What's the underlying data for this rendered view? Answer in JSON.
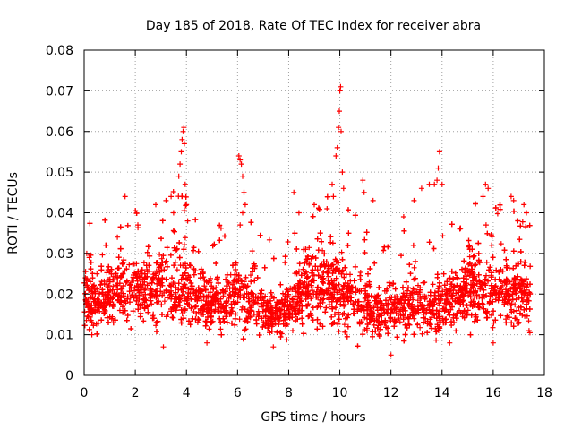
{
  "chart_data": {
    "type": "scatter",
    "title": "Day 185 of 2018, Rate Of TEC Index for receiver abra",
    "xlabel": "GPS time / hours",
    "ylabel": "ROTI / TECUs",
    "xlim": [
      0,
      18
    ],
    "ylim": [
      0,
      0.08
    ],
    "xticks": [
      "0",
      "2",
      "4",
      "6",
      "8",
      "10",
      "12",
      "14",
      "16",
      "18"
    ],
    "yticks": [
      "0",
      "0.01",
      "0.02",
      "0.03",
      "0.04",
      "0.05",
      "0.06",
      "0.07",
      "0.08"
    ],
    "grid": true,
    "marker": "+",
    "color": "#ff0000",
    "approximate_point_count": 5000,
    "background_band": [
      {
        "x": 0.0,
        "low": 0.012,
        "high": 0.027
      },
      {
        "x": 0.5,
        "low": 0.01,
        "high": 0.026
      },
      {
        "x": 1.0,
        "low": 0.012,
        "high": 0.028
      },
      {
        "x": 1.5,
        "low": 0.013,
        "high": 0.03
      },
      {
        "x": 2.0,
        "low": 0.013,
        "high": 0.029
      },
      {
        "x": 2.5,
        "low": 0.012,
        "high": 0.03
      },
      {
        "x": 3.0,
        "low": 0.011,
        "high": 0.033
      },
      {
        "x": 3.5,
        "low": 0.011,
        "high": 0.034
      },
      {
        "x": 4.0,
        "low": 0.012,
        "high": 0.032
      },
      {
        "x": 4.5,
        "low": 0.012,
        "high": 0.026
      },
      {
        "x": 5.0,
        "low": 0.011,
        "high": 0.025
      },
      {
        "x": 5.5,
        "low": 0.011,
        "high": 0.025
      },
      {
        "x": 6.0,
        "low": 0.012,
        "high": 0.028
      },
      {
        "x": 6.5,
        "low": 0.011,
        "high": 0.026
      },
      {
        "x": 7.0,
        "low": 0.01,
        "high": 0.023
      },
      {
        "x": 7.5,
        "low": 0.009,
        "high": 0.021
      },
      {
        "x": 8.0,
        "low": 0.01,
        "high": 0.023
      },
      {
        "x": 8.5,
        "low": 0.011,
        "high": 0.03
      },
      {
        "x": 9.0,
        "low": 0.012,
        "high": 0.032
      },
      {
        "x": 9.5,
        "low": 0.012,
        "high": 0.033
      },
      {
        "x": 10.0,
        "low": 0.012,
        "high": 0.032
      },
      {
        "x": 10.5,
        "low": 0.011,
        "high": 0.029
      },
      {
        "x": 11.0,
        "low": 0.01,
        "high": 0.025
      },
      {
        "x": 11.5,
        "low": 0.009,
        "high": 0.023
      },
      {
        "x": 12.0,
        "low": 0.009,
        "high": 0.023
      },
      {
        "x": 12.5,
        "low": 0.01,
        "high": 0.024
      },
      {
        "x": 13.0,
        "low": 0.01,
        "high": 0.025
      },
      {
        "x": 13.5,
        "low": 0.01,
        "high": 0.024
      },
      {
        "x": 14.0,
        "low": 0.01,
        "high": 0.024
      },
      {
        "x": 14.5,
        "low": 0.011,
        "high": 0.026
      },
      {
        "x": 15.0,
        "low": 0.012,
        "high": 0.03
      },
      {
        "x": 15.5,
        "low": 0.012,
        "high": 0.032
      },
      {
        "x": 16.0,
        "low": 0.011,
        "high": 0.031
      },
      {
        "x": 16.5,
        "low": 0.011,
        "high": 0.031
      },
      {
        "x": 17.0,
        "low": 0.011,
        "high": 0.03
      },
      {
        "x": 17.45,
        "low": 0.012,
        "high": 0.029
      }
    ],
    "notable_points": [
      {
        "x": 0.05,
        "y": 0.024
      },
      {
        "x": 0.1,
        "y": 0.03
      },
      {
        "x": 0.2,
        "y": 0.029
      },
      {
        "x": 0.3,
        "y": 0.01
      },
      {
        "x": 0.5,
        "y": 0.025
      },
      {
        "x": 1.3,
        "y": 0.034
      },
      {
        "x": 1.6,
        "y": 0.044
      },
      {
        "x": 2.1,
        "y": 0.037
      },
      {
        "x": 2.8,
        "y": 0.042
      },
      {
        "x": 3.1,
        "y": 0.007
      },
      {
        "x": 3.2,
        "y": 0.043
      },
      {
        "x": 3.4,
        "y": 0.044
      },
      {
        "x": 3.5,
        "y": 0.04
      },
      {
        "x": 3.7,
        "y": 0.049
      },
      {
        "x": 3.75,
        "y": 0.052
      },
      {
        "x": 3.8,
        "y": 0.055
      },
      {
        "x": 3.83,
        "y": 0.058
      },
      {
        "x": 3.87,
        "y": 0.06
      },
      {
        "x": 3.9,
        "y": 0.061
      },
      {
        "x": 3.92,
        "y": 0.057
      },
      {
        "x": 3.95,
        "y": 0.047
      },
      {
        "x": 4.0,
        "y": 0.042
      },
      {
        "x": 4.05,
        "y": 0.038
      },
      {
        "x": 4.8,
        "y": 0.008
      },
      {
        "x": 6.05,
        "y": 0.054
      },
      {
        "x": 6.1,
        "y": 0.053
      },
      {
        "x": 6.15,
        "y": 0.052
      },
      {
        "x": 6.2,
        "y": 0.049
      },
      {
        "x": 6.25,
        "y": 0.045
      },
      {
        "x": 6.3,
        "y": 0.042
      },
      {
        "x": 6.1,
        "y": 0.037
      },
      {
        "x": 6.2,
        "y": 0.04
      },
      {
        "x": 7.4,
        "y": 0.007
      },
      {
        "x": 8.2,
        "y": 0.045
      },
      {
        "x": 8.4,
        "y": 0.04
      },
      {
        "x": 9.0,
        "y": 0.042
      },
      {
        "x": 9.5,
        "y": 0.041
      },
      {
        "x": 9.7,
        "y": 0.047
      },
      {
        "x": 9.75,
        "y": 0.044
      },
      {
        "x": 9.85,
        "y": 0.054
      },
      {
        "x": 9.9,
        "y": 0.056
      },
      {
        "x": 9.95,
        "y": 0.061
      },
      {
        "x": 9.98,
        "y": 0.065
      },
      {
        "x": 10.0,
        "y": 0.07
      },
      {
        "x": 10.03,
        "y": 0.071
      },
      {
        "x": 10.05,
        "y": 0.06
      },
      {
        "x": 10.1,
        "y": 0.05
      },
      {
        "x": 10.15,
        "y": 0.046
      },
      {
        "x": 10.9,
        "y": 0.048
      },
      {
        "x": 10.95,
        "y": 0.045
      },
      {
        "x": 11.3,
        "y": 0.043
      },
      {
        "x": 12.0,
        "y": 0.005
      },
      {
        "x": 12.5,
        "y": 0.039
      },
      {
        "x": 12.9,
        "y": 0.043
      },
      {
        "x": 13.2,
        "y": 0.046
      },
      {
        "x": 13.5,
        "y": 0.047
      },
      {
        "x": 13.7,
        "y": 0.047
      },
      {
        "x": 13.8,
        "y": 0.048
      },
      {
        "x": 13.85,
        "y": 0.051
      },
      {
        "x": 13.9,
        "y": 0.055
      },
      {
        "x": 14.0,
        "y": 0.047
      },
      {
        "x": 14.3,
        "y": 0.008
      },
      {
        "x": 15.6,
        "y": 0.044
      },
      {
        "x": 15.7,
        "y": 0.047
      },
      {
        "x": 15.8,
        "y": 0.046
      },
      {
        "x": 16.0,
        "y": 0.008
      },
      {
        "x": 16.7,
        "y": 0.044
      },
      {
        "x": 16.8,
        "y": 0.043
      },
      {
        "x": 17.2,
        "y": 0.042
      },
      {
        "x": 17.3,
        "y": 0.04
      },
      {
        "x": 17.4,
        "y": 0.011
      }
    ]
  }
}
